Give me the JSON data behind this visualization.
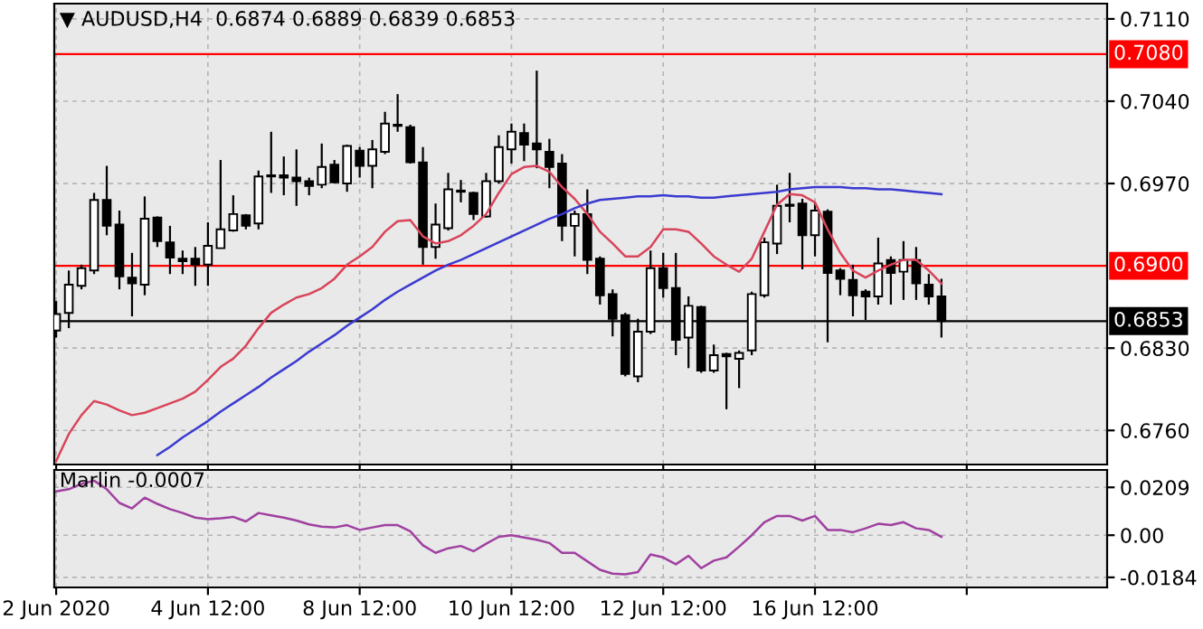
{
  "chart_data": [
    {
      "type": "candlestick",
      "title": "▼ AUDUSD,H4  0.6874 0.6889 0.6839 0.6853",
      "categories": [
        null,
        null,
        null,
        null,
        null,
        null,
        null,
        null,
        null,
        null,
        null,
        null,
        null,
        null,
        null,
        null,
        null,
        null,
        null,
        null,
        null,
        null,
        null,
        null,
        null,
        null,
        null,
        null,
        null,
        null,
        null,
        null,
        null,
        null,
        null,
        null,
        null,
        null,
        null,
        null,
        null,
        null,
        null,
        null,
        null,
        null,
        null,
        null,
        null,
        null,
        null,
        null,
        null,
        null,
        null,
        null,
        null,
        null,
        null,
        null,
        null,
        null,
        null,
        null,
        null,
        null,
        null,
        null,
        null,
        null,
        null,
        null,
        null,
        null,
        null,
        null,
        null,
        null,
        null,
        null,
        null,
        null,
        null,
        null
      ],
      "ohlc": [
        [
          0.6845,
          0.687,
          0.6839,
          0.6859
        ],
        [
          0.686,
          0.6896,
          0.6847,
          0.6884
        ],
        [
          0.6883,
          0.6901,
          0.688,
          0.6898
        ],
        [
          0.6896,
          0.6962,
          0.6893,
          0.6956
        ],
        [
          0.6956,
          0.6985,
          0.6926,
          0.6934
        ],
        [
          0.6935,
          0.6947,
          0.688,
          0.6891
        ],
        [
          0.689,
          0.6911,
          0.6857,
          0.6885
        ],
        [
          0.6884,
          0.6959,
          0.6875,
          0.694
        ],
        [
          0.6941,
          0.6942,
          0.6916,
          0.6921
        ],
        [
          0.692,
          0.6934,
          0.6893,
          0.6907
        ],
        [
          0.6906,
          0.6913,
          0.6893,
          0.6904
        ],
        [
          0.6906,
          0.6916,
          0.6883,
          0.6901
        ],
        [
          0.6901,
          0.6937,
          0.6883,
          0.6917
        ],
        [
          0.6915,
          0.699,
          0.6915,
          0.6931
        ],
        [
          0.693,
          0.696,
          0.6929,
          0.6944
        ],
        [
          0.6943,
          0.6944,
          0.6931,
          0.6934
        ],
        [
          0.6936,
          0.6981,
          0.6931,
          0.6976
        ],
        [
          0.6976,
          0.7014,
          0.6962,
          0.6977
        ],
        [
          0.6977,
          0.6993,
          0.696,
          0.6975
        ],
        [
          0.6975,
          0.6999,
          0.6951,
          0.6972
        ],
        [
          0.6972,
          0.6975,
          0.696,
          0.6968
        ],
        [
          0.6969,
          0.7004,
          0.6966,
          0.6984
        ],
        [
          0.6986,
          0.699,
          0.697,
          0.6971
        ],
        [
          0.697,
          0.7003,
          0.6963,
          0.7002
        ],
        [
          0.6998,
          0.7001,
          0.6975,
          0.6985
        ],
        [
          0.6985,
          0.7007,
          0.6966,
          0.6999
        ],
        [
          0.6997,
          0.7031,
          0.6995,
          0.7021
        ],
        [
          0.702,
          0.7046,
          0.7014,
          0.7019
        ],
        [
          0.7018,
          0.702,
          0.6987,
          0.6988
        ],
        [
          0.6988,
          0.7001,
          0.6901,
          0.6916
        ],
        [
          0.6916,
          0.6953,
          0.6906,
          0.6935
        ],
        [
          0.6932,
          0.6979,
          0.693,
          0.6965
        ],
        [
          0.6963,
          0.6973,
          0.6954,
          0.6964
        ],
        [
          0.6962,
          0.6963,
          0.6939,
          0.6944
        ],
        [
          0.6942,
          0.6979,
          0.6941,
          0.6972
        ],
        [
          0.6972,
          0.7011,
          0.697,
          0.7001
        ],
        [
          0.6999,
          0.7021,
          0.6987,
          0.7014
        ],
        [
          0.7013,
          0.7021,
          0.6989,
          0.7003
        ],
        [
          0.7004,
          0.7066,
          0.6983,
          0.6999
        ],
        [
          0.6997,
          0.7008,
          0.6966,
          0.6984
        ],
        [
          0.6987,
          0.6995,
          0.6921,
          0.6934
        ],
        [
          0.6934,
          0.6947,
          0.6908,
          0.6944
        ],
        [
          0.6944,
          0.6965,
          0.6893,
          0.6905
        ],
        [
          0.6906,
          0.6908,
          0.6867,
          0.6875
        ],
        [
          0.6876,
          0.688,
          0.684,
          0.6855
        ],
        [
          0.6858,
          0.686,
          0.6806,
          0.6808
        ],
        [
          0.6806,
          0.6855,
          0.6801,
          0.6844
        ],
        [
          0.6844,
          0.6913,
          0.6842,
          0.6898
        ],
        [
          0.6898,
          0.6911,
          0.6873,
          0.6881
        ],
        [
          0.6881,
          0.6911,
          0.6824,
          0.6837
        ],
        [
          0.6839,
          0.6874,
          0.6813,
          0.6866
        ],
        [
          0.6865,
          0.6866,
          0.6809,
          0.6811
        ],
        [
          0.6811,
          0.6833,
          0.6809,
          0.6824
        ],
        [
          0.6825,
          0.6826,
          0.6778,
          0.6823
        ],
        [
          0.6821,
          0.6828,
          0.6796,
          0.6826
        ],
        [
          0.6828,
          0.6878,
          0.6824,
          0.6876
        ],
        [
          0.6875,
          0.6924,
          0.6873,
          0.692
        ],
        [
          0.6919,
          0.6969,
          0.691,
          0.6951
        ],
        [
          0.6951,
          0.6979,
          0.6937,
          0.6952
        ],
        [
          0.6953,
          0.6957,
          0.6897,
          0.6926
        ],
        [
          0.6926,
          0.6954,
          0.6908,
          0.6947
        ],
        [
          0.6946,
          0.6948,
          0.6835,
          0.6894
        ],
        [
          0.6896,
          0.6898,
          0.6875,
          0.6889
        ],
        [
          0.6888,
          0.6901,
          0.6857,
          0.6875
        ],
        [
          0.6878,
          0.688,
          0.6854,
          0.6874
        ],
        [
          0.6874,
          0.6924,
          0.6867,
          0.6902
        ],
        [
          0.6905,
          0.6908,
          0.6867,
          0.6894
        ],
        [
          0.6895,
          0.6921,
          0.6871,
          0.6905
        ],
        [
          0.6905,
          0.6916,
          0.6871,
          0.6885
        ],
        [
          0.6884,
          0.6893,
          0.6867,
          0.6874
        ],
        [
          0.6874,
          0.6889,
          0.6839,
          0.6853
        ],
        null,
        null,
        null,
        null,
        null,
        null,
        null,
        null,
        null,
        null,
        null,
        null,
        null
      ],
      "series": [
        {
          "type": "line",
          "color": "#d9445a",
          "values": [
            0.6734,
            0.6757,
            0.6773,
            0.6785,
            0.6782,
            0.6777,
            0.6773,
            0.6775,
            0.6779,
            0.6783,
            0.6787,
            0.6793,
            0.6803,
            0.6814,
            0.6821,
            0.6832,
            0.6847,
            0.686,
            0.6867,
            0.6873,
            0.6876,
            0.6881,
            0.6889,
            0.6901,
            0.6908,
            0.6916,
            0.6929,
            0.6938,
            0.6939,
            0.6925,
            0.6919,
            0.6921,
            0.6926,
            0.6934,
            0.6944,
            0.6962,
            0.6978,
            0.6984,
            0.6985,
            0.698,
            0.6967,
            0.6957,
            0.6944,
            0.6929,
            0.6919,
            0.6908,
            0.6908,
            0.6916,
            0.6931,
            0.6931,
            0.6929,
            0.6919,
            0.6908,
            0.6901,
            0.6895,
            0.6906,
            0.6929,
            0.6952,
            0.6961,
            0.696,
            0.6954,
            0.6931,
            0.6911,
            0.6896,
            0.689,
            0.6896,
            0.6901,
            0.6905,
            0.6905,
            0.6896,
            0.6885,
            null,
            null,
            null,
            null,
            null,
            null,
            null,
            null,
            null,
            null,
            null,
            null,
            null
          ]
        },
        {
          "type": "line",
          "color": "#3a3ad0",
          "values": [
            null,
            null,
            null,
            null,
            null,
            null,
            null,
            null,
            0.6739,
            0.6746,
            0.6754,
            0.6761,
            0.6768,
            0.6776,
            0.6783,
            0.679,
            0.6797,
            0.6805,
            0.6812,
            0.6819,
            0.6827,
            0.6834,
            0.6841,
            0.6849,
            0.6856,
            0.6863,
            0.6871,
            0.6878,
            0.6884,
            0.689,
            0.6896,
            0.6901,
            0.6905,
            0.691,
            0.6915,
            0.692,
            0.6925,
            0.693,
            0.6935,
            0.694,
            0.6944,
            0.6949,
            0.6953,
            0.6956,
            0.6957,
            0.6958,
            0.6959,
            0.6959,
            0.696,
            0.6959,
            0.6959,
            0.6958,
            0.6958,
            0.6959,
            0.696,
            0.6961,
            0.6962,
            0.6963,
            0.6965,
            0.6966,
            0.6967,
            0.6967,
            0.6967,
            0.6966,
            0.6966,
            0.6965,
            0.6965,
            0.6964,
            0.6963,
            0.6962,
            0.6961,
            null,
            null,
            null,
            null,
            null,
            null,
            null,
            null,
            null,
            null,
            null,
            null,
            null
          ]
        }
      ],
      "ylim": [
        0.6731,
        0.7123
      ],
      "yticks": [
        {
          "value": 0.711,
          "label": "0.7110"
        },
        {
          "value": 0.704,
          "label": "0.7040"
        },
        {
          "value": 0.697,
          "label": "0.6970"
        },
        {
          "value": 0.683,
          "label": "0.6830"
        },
        {
          "value": 0.676,
          "label": "0.6760"
        }
      ],
      "ref_lines": [
        {
          "axis": "y",
          "value": 0.708,
          "label": "0.7080",
          "color": "#ff0000"
        },
        {
          "axis": "y",
          "value": 0.69,
          "label": "0.6900",
          "color": "#ff0000"
        },
        {
          "axis": "y",
          "value": 0.6853,
          "label": "0.6853",
          "color": "#000000"
        }
      ],
      "grid": true,
      "tick_labels": "y"
    },
    {
      "type": "line",
      "title": "Marlin -0.0007",
      "categories": [
        "2 Jun 2020",
        null,
        null,
        null,
        null,
        null,
        null,
        null,
        null,
        null,
        null,
        null,
        "4 Jun 12:00",
        null,
        null,
        null,
        null,
        null,
        null,
        null,
        null,
        null,
        null,
        null,
        "8 Jun 12:00",
        null,
        null,
        null,
        null,
        null,
        null,
        null,
        null,
        null,
        null,
        null,
        "10 Jun 12:00",
        null,
        null,
        null,
        null,
        null,
        null,
        null,
        null,
        null,
        null,
        null,
        "12 Jun 12:00",
        null,
        null,
        null,
        null,
        null,
        null,
        null,
        null,
        null,
        null,
        null,
        "16 Jun 12:00",
        null,
        null,
        null,
        null,
        null,
        null,
        null,
        null,
        null,
        null,
        null,
        null,
        null,
        null,
        null,
        null,
        null,
        null,
        null,
        null,
        null,
        null,
        null
      ],
      "color": "#a040a0",
      "values": [
        0.0191,
        0.0201,
        0.0224,
        0.0238,
        0.0201,
        0.0141,
        0.0117,
        0.0164,
        0.0137,
        0.0114,
        0.0097,
        0.0077,
        0.007,
        0.0074,
        0.008,
        0.006,
        0.0097,
        0.0087,
        0.0077,
        0.0064,
        0.0047,
        0.0037,
        0.0034,
        0.0044,
        0.0023,
        0.0034,
        0.0044,
        0.0044,
        0.0017,
        -0.0044,
        -0.0077,
        -0.0057,
        -0.0047,
        -0.007,
        -0.0037,
        -0.0007,
        0.0,
        -0.001,
        -0.002,
        -0.0034,
        -0.0077,
        -0.0077,
        -0.0114,
        -0.0151,
        -0.0168,
        -0.0171,
        -0.0161,
        -0.0084,
        -0.0097,
        -0.0127,
        -0.009,
        -0.0144,
        -0.0111,
        -0.0097,
        -0.005,
        0.0,
        0.0057,
        0.0084,
        0.0084,
        0.0064,
        0.0084,
        0.0023,
        0.0023,
        0.0013,
        0.003,
        0.005,
        0.0044,
        0.0057,
        0.003,
        0.0023,
        -0.0007,
        null,
        null,
        null,
        null,
        null,
        null,
        null,
        null,
        null,
        null,
        null,
        null,
        null
      ],
      "ylim": [
        -0.0228,
        0.0285
      ],
      "yticks": [
        0.0209,
        {
          "value": 0,
          "label": "0.00"
        },
        {
          "value": -0.0184,
          "label": "-0.0184"
        }
      ],
      "grid": true
    }
  ]
}
